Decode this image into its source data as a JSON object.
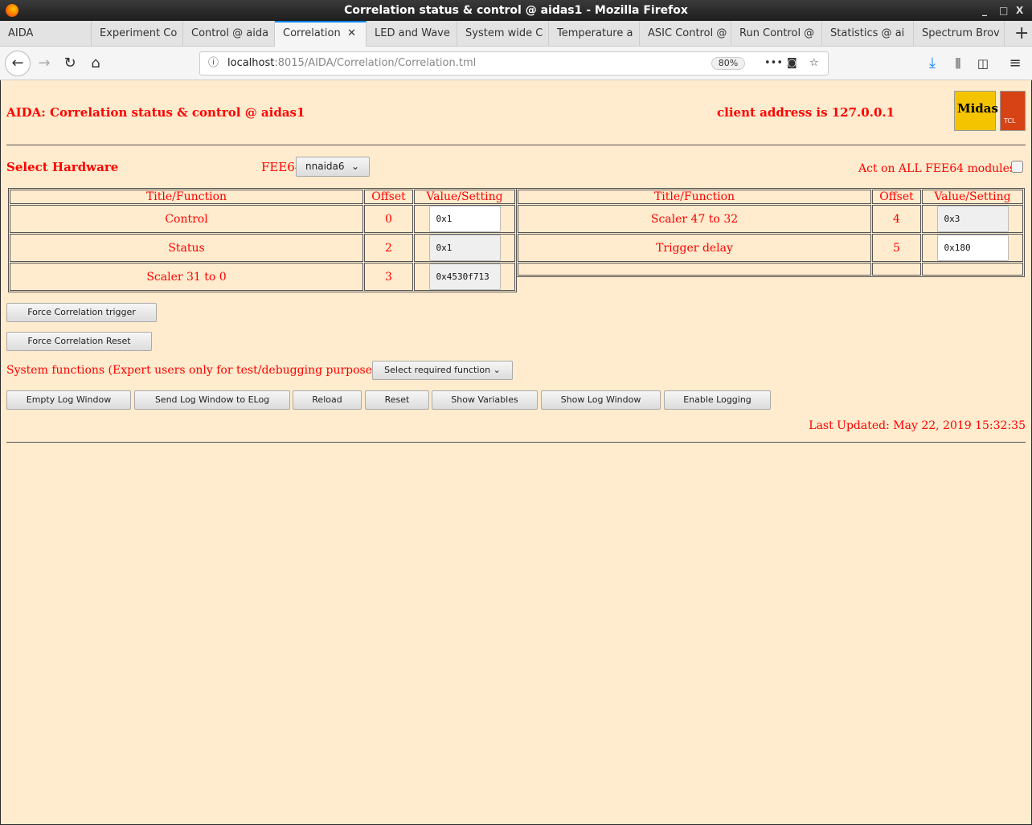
{
  "window": {
    "title": "Correlation status & control @ aidas1 - Mozilla Firefox",
    "controls": [
      "_",
      "□",
      "X"
    ]
  },
  "tabs": [
    "AIDA",
    "Experiment Co",
    "Control @ aida",
    "Correlation",
    "LED and Wave",
    "System wide C",
    "Temperature a",
    "ASIC Control @",
    "Run Control @",
    "Statistics @ ai",
    "Spectrum Brov"
  ],
  "nav": {
    "url_host": "localhost",
    "url_path": ":8015/AIDA/Correlation/Correlation.tml",
    "zoom": "80%"
  },
  "page": {
    "heading": "AIDA: Correlation status & control @ aidas1",
    "client": "client address is 127.0.0.1",
    "logos": [
      "Midas",
      "TCL"
    ],
    "select_hardware": "Select Hardware",
    "fee_label": "FEE64",
    "fee_value": "nnaida6",
    "act_all": "Act on ALL FEE64 modules?",
    "headers": [
      "Title/Function",
      "Offset",
      "Value/Setting"
    ],
    "left_rows": [
      {
        "title": "Control",
        "offset": "0",
        "value": "0x1",
        "editable": true
      },
      {
        "title": "Status",
        "offset": "2",
        "value": "0x1",
        "editable": false
      },
      {
        "title": "Scaler 31 to 0",
        "offset": "3",
        "value": "0x4530f713",
        "editable": false
      }
    ],
    "right_rows": [
      {
        "title": "Scaler 47 to 32",
        "offset": "4",
        "value": "0x3",
        "editable": false
      },
      {
        "title": "Trigger delay",
        "offset": "5",
        "value": "0x180",
        "editable": true
      }
    ],
    "force_trigger": "Force Correlation trigger",
    "force_reset": "Force Correlation Reset",
    "system_functions": "System functions (Expert users only for test/debugging purposes!!!)",
    "select_function": "Select required function",
    "buttons": [
      "Empty Log Window",
      "Send Log Window to ELog",
      "Reload",
      "Reset",
      "Show Variables",
      "Show Log Window",
      "Enable Logging"
    ],
    "last_updated": "Last Updated: May 22, 2019 15:32:35"
  }
}
